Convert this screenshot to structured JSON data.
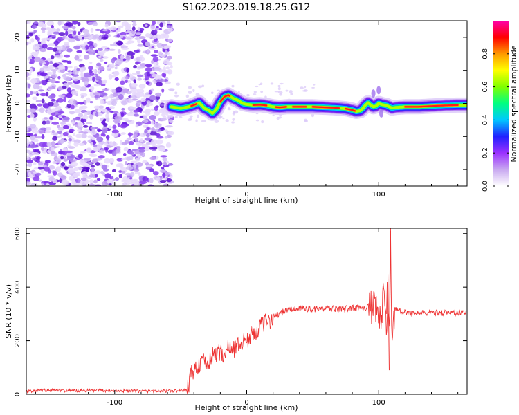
{
  "title": "S162.2023.019.18.25.G12",
  "chart_data": [
    {
      "type": "heatmap",
      "xlabel": "Height of straight line (km)",
      "ylabel": "Frequency (Hz)",
      "xlim": [
        -167,
        167
      ],
      "ylim": [
        -25,
        25
      ],
      "xticks": [
        -100,
        0,
        100
      ],
      "yticks": [
        -20,
        -10,
        0,
        10,
        20
      ],
      "noise_region_x": [
        -167,
        -57
      ],
      "signal_start_x": -57,
      "carrier_trace": {
        "x": [
          -57,
          -50,
          -44,
          -40,
          -36,
          -32,
          -29,
          -26,
          -23,
          -20,
          -17,
          -14,
          -10,
          -7,
          -3,
          0,
          5,
          10,
          15,
          20,
          25,
          30,
          40,
          50,
          60,
          70,
          75,
          80,
          83,
          86,
          88,
          90,
          92,
          94,
          96,
          98,
          100,
          103,
          106,
          110,
          113,
          120,
          130,
          140,
          150,
          160,
          167
        ],
        "y": [
          -1,
          -1.5,
          -1,
          -0.5,
          0.2,
          -1.5,
          -2,
          -3,
          -1.8,
          0.5,
          2,
          2.5,
          1.5,
          1,
          0,
          -0.3,
          -0.5,
          -0.4,
          -0.6,
          -1,
          -1.2,
          -1,
          -1,
          -1,
          -1.2,
          -1.4,
          -1.6,
          -2,
          -2.4,
          -2.2,
          -1.5,
          -0.5,
          0.2,
          -0.5,
          -1,
          -0.8,
          0,
          -0.4,
          -0.6,
          -1.4,
          -1.2,
          -1,
          -1,
          -0.8,
          -0.6,
          -0.5,
          -0.5
        ]
      },
      "colorbar": {
        "label": "Normalized spectral amplitude",
        "range": [
          0,
          1
        ],
        "ticks": [
          0.0,
          0.2,
          0.4,
          0.6,
          0.8
        ],
        "tick_labels": [
          "0.0",
          "0.2",
          "0.4",
          "0.6",
          "0.8"
        ],
        "colors": [
          "#ffffff",
          "#c8a8f0",
          "#9b30ff",
          "#2020ff",
          "#00c8ff",
          "#00ff80",
          "#80ff00",
          "#ffff00",
          "#ff9900",
          "#ff0000",
          "#ff00aa"
        ]
      }
    },
    {
      "type": "line",
      "xlabel": "Height of straight line (km)",
      "ylabel": "SNR (10 * v/v)",
      "xlim": [
        -167,
        167
      ],
      "ylim": [
        0,
        620
      ],
      "xticks": [
        -100,
        0,
        100
      ],
      "yticks": [
        0,
        200,
        400,
        600
      ],
      "series": [
        {
          "color": "#ee3333",
          "x": [
            -167,
            -150,
            -130,
            -110,
            -90,
            -70,
            -57,
            -45,
            -42,
            -38,
            -34,
            -30,
            -26,
            -22,
            -18,
            -14,
            -10,
            -5,
            0,
            5,
            10,
            15,
            20,
            25,
            30,
            40,
            50,
            60,
            70,
            80,
            90,
            95,
            100,
            102,
            104,
            106,
            107,
            108,
            109,
            110,
            112,
            115,
            120,
            130,
            140,
            150,
            160,
            167
          ],
          "y": [
            12,
            15,
            13,
            14,
            12,
            12,
            12,
            14,
            80,
            100,
            120,
            110,
            140,
            160,
            150,
            170,
            170,
            190,
            200,
            230,
            250,
            270,
            290,
            300,
            315,
            320,
            318,
            320,
            318,
            322,
            325,
            320,
            300,
            260,
            390,
            200,
            420,
            240,
            610,
            220,
            320,
            310,
            305,
            303,
            305,
            304,
            305,
            305
          ]
        }
      ]
    }
  ]
}
